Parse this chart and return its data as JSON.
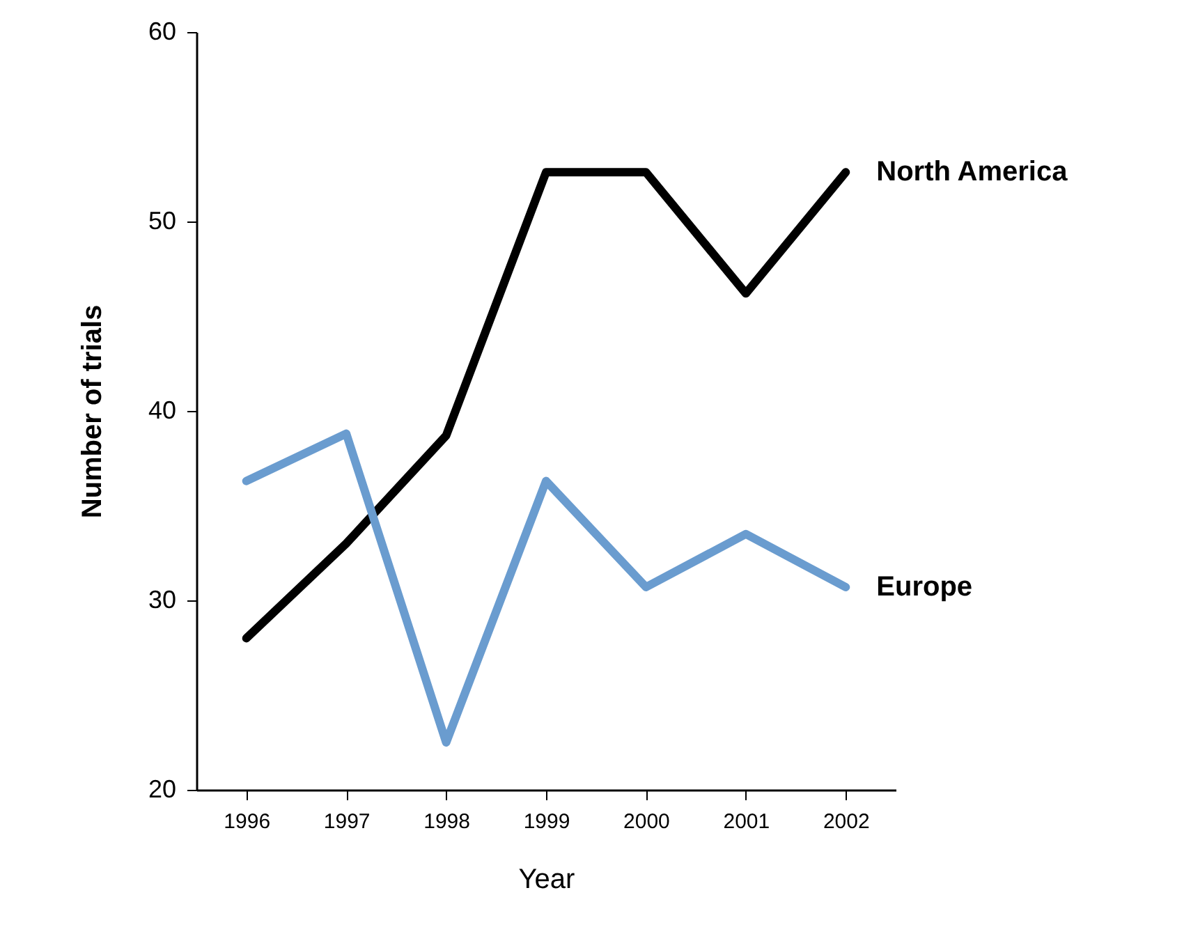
{
  "chart_data": {
    "type": "line",
    "xlabel": "Year",
    "ylabel": "Number of trials",
    "categories": [
      "1996",
      "1997",
      "1998",
      "1999",
      "2000",
      "2001",
      "2002"
    ],
    "series": [
      {
        "name": "North America",
        "color": "#000000",
        "values": [
          28.0,
          33.0,
          38.7,
          52.6,
          52.6,
          46.2,
          52.6
        ]
      },
      {
        "name": "Europe",
        "color": "#6a9ccf",
        "values": [
          36.3,
          38.8,
          22.5,
          36.3,
          30.7,
          33.5,
          30.7
        ]
      }
    ],
    "ylim": [
      20,
      60
    ],
    "yticks": [
      20,
      30,
      40,
      50,
      60
    ],
    "grid": false,
    "marker": "none",
    "line_style": "solid"
  }
}
